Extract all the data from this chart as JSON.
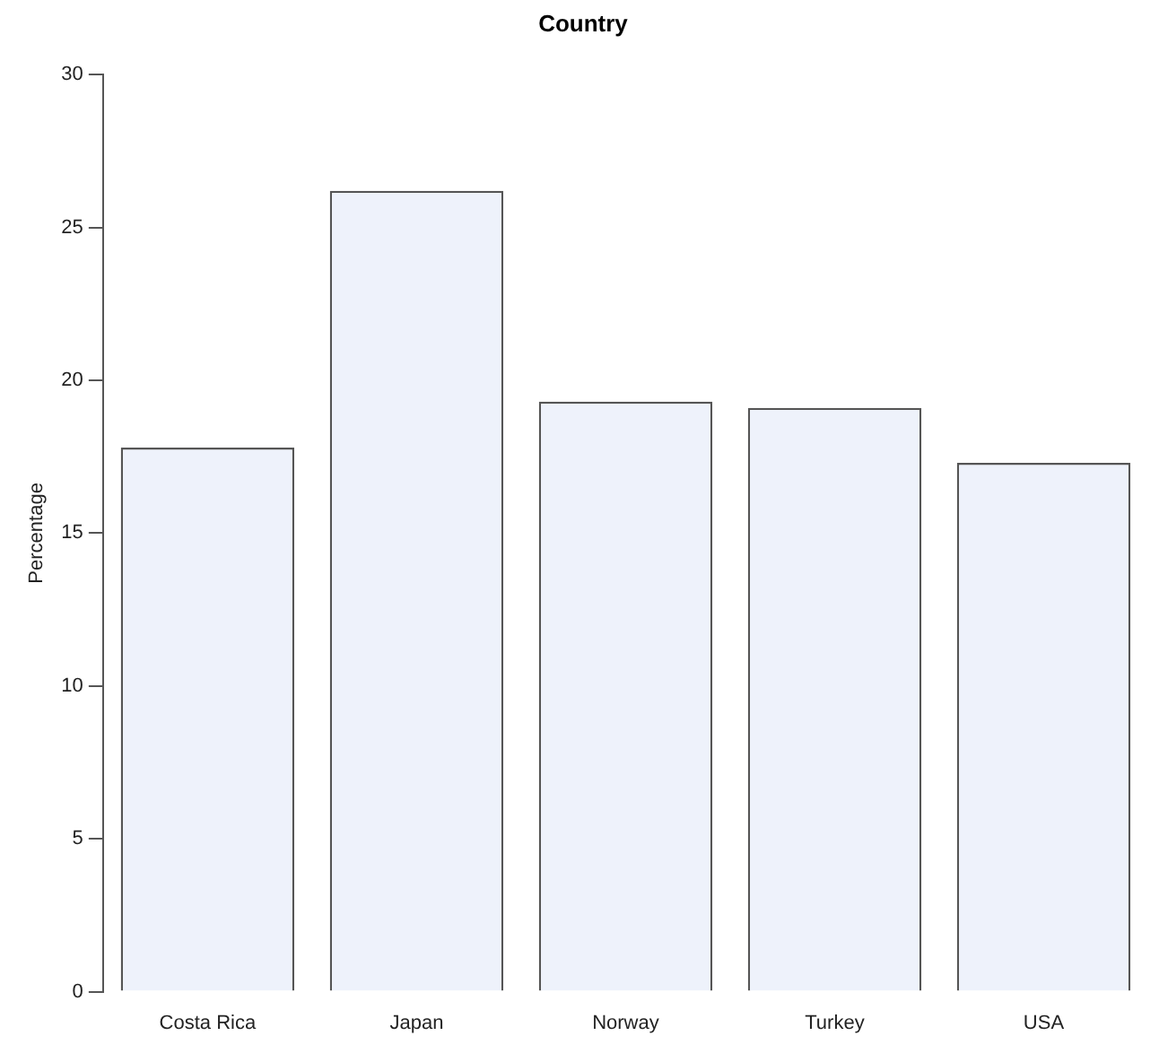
{
  "chart_data": {
    "type": "bar",
    "title": "Country",
    "ylabel": "Percentage",
    "categories": [
      "Costa Rica",
      "Japan",
      "Norway",
      "Turkey",
      "USA"
    ],
    "values": [
      17.8,
      26.2,
      19.3,
      19.1,
      17.3
    ],
    "color": "#eef2fb",
    "ylim": [
      0,
      30
    ],
    "yticks": [
      0,
      5,
      10,
      15,
      20,
      25,
      30
    ],
    "grid": false,
    "legend": false
  }
}
